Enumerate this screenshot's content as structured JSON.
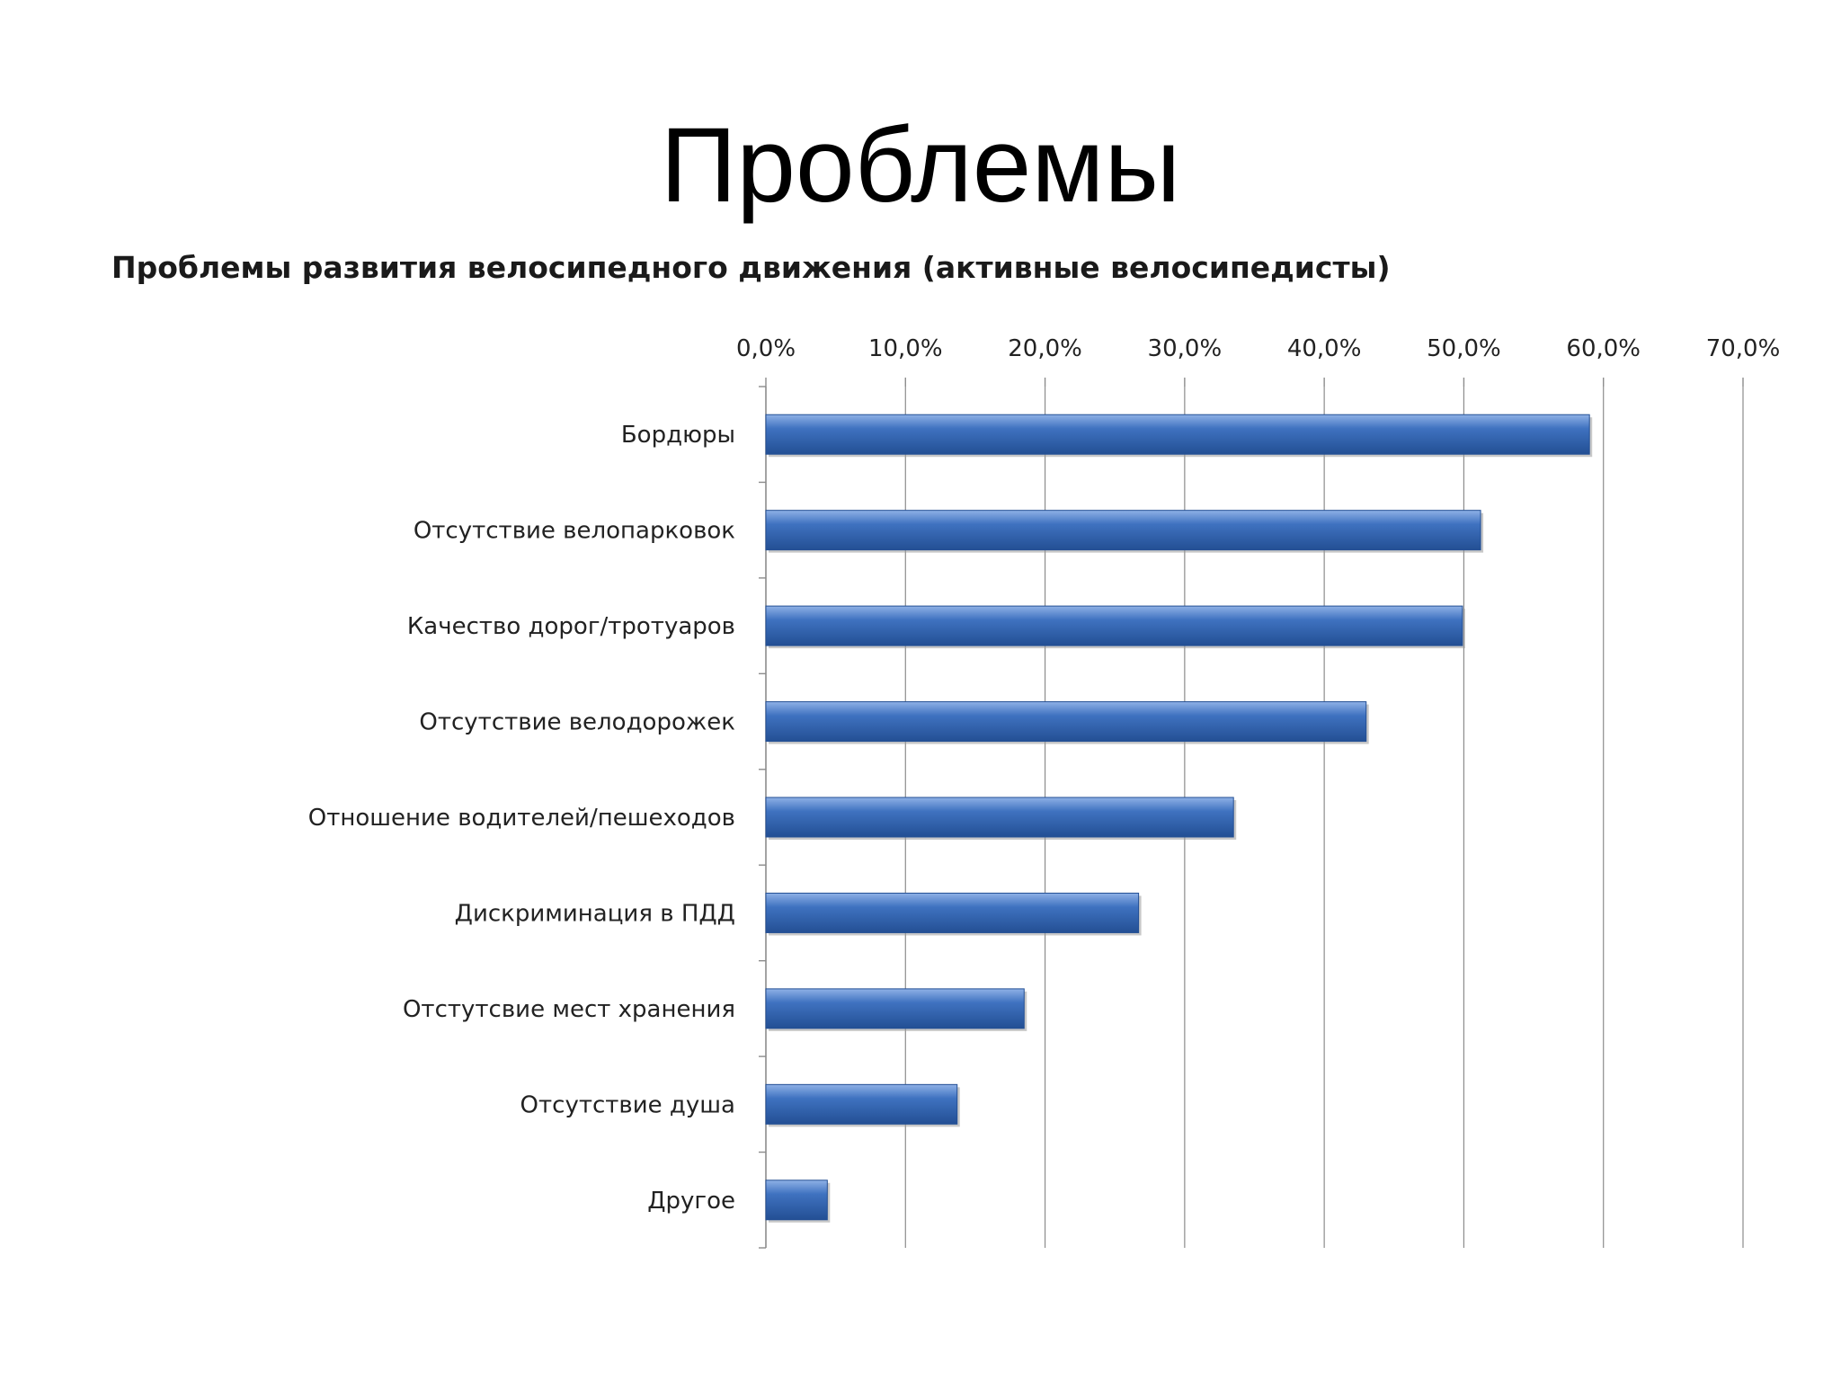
{
  "slide": {
    "title": "Проблемы"
  },
  "colors": {
    "bar": "#3f72c0",
    "bar_light": "#8fb1e6",
    "bar_dark": "#234f94",
    "grid": "#8c8c8c"
  },
  "chart_data": {
    "type": "bar",
    "orientation": "horizontal",
    "title": "Проблемы развития велосипедного движения  (активные велосипедисты)",
    "xlabel": "",
    "ylabel": "",
    "xlim": [
      0,
      70
    ],
    "x_axis_position": "top",
    "grid": true,
    "tick_labels": [
      "0,0%",
      "10,0%",
      "20,0%",
      "30,0%",
      "40,0%",
      "50,0%",
      "60,0%",
      "70,0%"
    ],
    "ticks": [
      0,
      10,
      20,
      30,
      40,
      50,
      60,
      70
    ],
    "categories": [
      "Бордюры",
      "Отсутствие велопарковок",
      "Качество дорог/тротуаров",
      "Отсутствие велодорожек",
      "Отношение водителей/пешеходов",
      "Дискриминация в ПДД",
      "Отстутсвие мест хранения",
      "Отсутствие душа",
      "Другое"
    ],
    "values": [
      59.0,
      51.2,
      49.9,
      43.0,
      33.5,
      26.7,
      18.5,
      13.7,
      4.4
    ]
  }
}
